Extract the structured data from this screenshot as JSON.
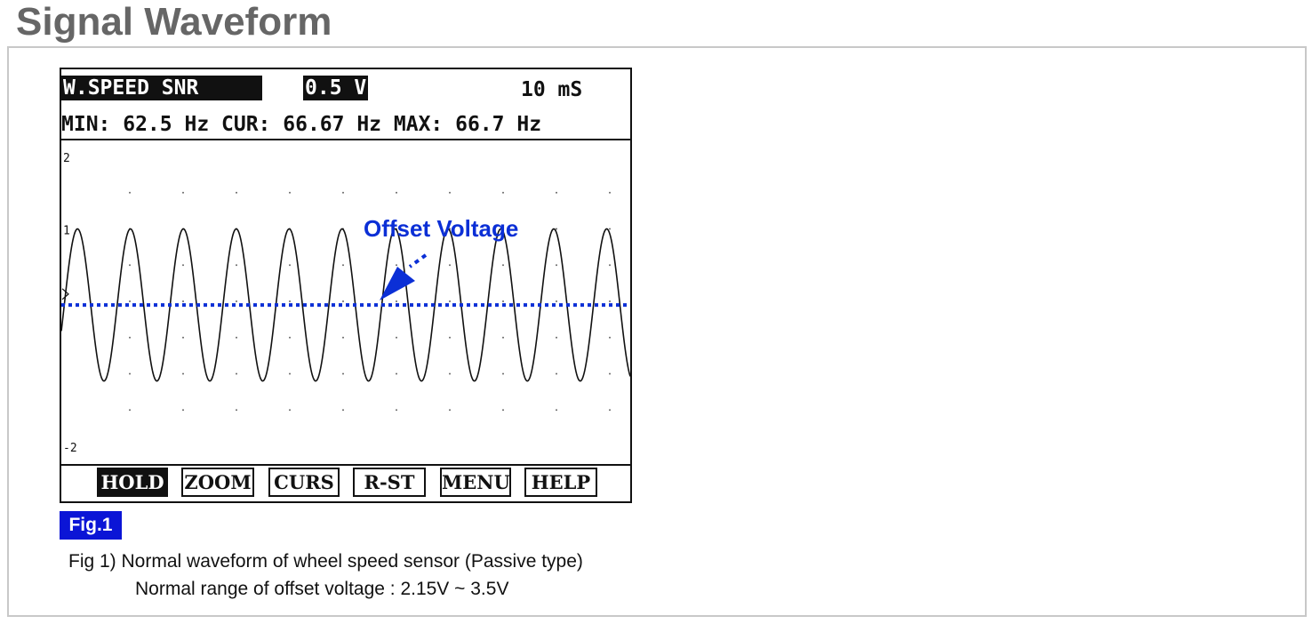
{
  "page_title": "Signal Waveform",
  "scope": {
    "channel": "W.SPEED SNR",
    "volt_div": "0.5 V",
    "time_div": "10 mS",
    "measure": "MIN: 62.5 Hz CUR: 66.67 Hz MAX: 66.7 Hz",
    "buttons": [
      "HOLD",
      "ZOOM",
      "CURS",
      "R-ST",
      "MENU",
      "HELP"
    ],
    "active_button": "HOLD"
  },
  "chart_data": {
    "type": "line",
    "title": "",
    "xlabel": "",
    "ylabel": "",
    "ylim": [
      -2,
      2
    ],
    "y_tick_labels": [
      "2",
      "1",
      "-2"
    ],
    "grid": "dotted",
    "series": [
      {
        "kind": "sine",
        "amplitude": 1.05,
        "offset": -0.05,
        "cycles_shown": 10.75,
        "color": "#111111"
      }
    ],
    "annotations": [
      {
        "text": "Offset Voltage",
        "color": "#0b2fd6"
      }
    ],
    "reference_line": {
      "y": -0.05,
      "style": "dotted",
      "color": "#0b2fd6"
    }
  },
  "figure": {
    "label": "Fig.1",
    "label_bg": "#0b15d6",
    "caption_line1": "Fig 1) Normal waveform of wheel speed sensor (Passive type)",
    "caption_line2": "Normal range of offset voltage : 2.15V ~ 3.5V"
  }
}
